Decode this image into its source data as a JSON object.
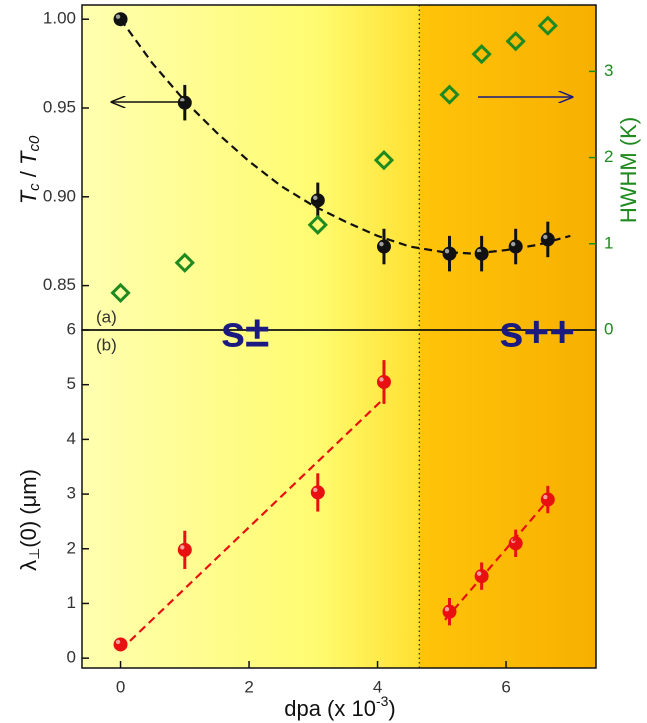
{
  "chart_data": [
    {
      "type": "scatter",
      "panel_label": "(a)",
      "annotations": [
        "s±",
        "s++"
      ],
      "ylabel_parts": [
        "T",
        "c",
        " / ",
        "T",
        "c0"
      ],
      "y2label": "HWHM  (K)",
      "xlim": [
        -0.6,
        7.4
      ],
      "ylim": [
        0.825,
        1.008
      ],
      "y2lim": [
        0,
        3.77
      ],
      "yticks": [
        {
          "value": 0.85,
          "label": "0.85"
        },
        {
          "value": 0.9,
          "label": "0.90"
        },
        {
          "value": 0.95,
          "label": "0.95"
        },
        {
          "value": 1.0,
          "label": "1.00"
        }
      ],
      "y2ticks": [
        0,
        1,
        2,
        3
      ],
      "y2color": "#1f8a1f",
      "transition_dpa": 4.65,
      "series": [
        {
          "color": "#111111",
          "marker": "circle",
          "x": [
            0,
            1,
            3.07,
            4.1,
            5.12,
            5.62,
            6.15,
            6.65
          ],
          "values": [
            1.0,
            0.953,
            0.898,
            0.872,
            0.868,
            0.868,
            0.872,
            0.876
          ],
          "errors": [
            0.003,
            0.01,
            0.01,
            0.01,
            0.01,
            0.01,
            0.01,
            0.01
          ]
        },
        {
          "color": "#1f8a1f",
          "marker": "diamond",
          "axis": "y2",
          "x": [
            0,
            1,
            3.07,
            4.1,
            5.12,
            5.62,
            6.15,
            6.65
          ],
          "values": [
            0.43,
            0.78,
            1.22,
            1.97,
            2.73,
            3.2,
            3.35,
            3.53
          ]
        },
        {
          "color": "#111111",
          "style": "dashed",
          "x": [
            0,
            0.5,
            1,
            1.5,
            2,
            2.5,
            3,
            3.5,
            4,
            4.5,
            5,
            5.5,
            6,
            6.5,
            7
          ],
          "values": [
            1.0,
            0.975,
            0.954,
            0.936,
            0.92,
            0.906,
            0.895,
            0.886,
            0.878,
            0.872,
            0.869,
            0.868,
            0.87,
            0.873,
            0.878
          ]
        }
      ]
    },
    {
      "type": "scatter",
      "panel_label": "(b)",
      "ylabel_parts": [
        "λ",
        "⊥",
        "(0)  (μm)"
      ],
      "xlabel_parts": [
        "dpa (x 10",
        "-3",
        ")"
      ],
      "xlim": [
        -0.6,
        7.4
      ],
      "xticks": [
        0,
        2,
        4,
        6
      ],
      "ylim": [
        -0.18,
        6
      ],
      "yticks": [
        0,
        1,
        2,
        3,
        4,
        5,
        6
      ],
      "series": [
        {
          "color": "#e81010",
          "marker": "circle",
          "x": [
            0,
            1,
            3.07,
            4.1,
            5.12,
            5.62,
            6.15,
            6.65
          ],
          "values": [
            0.25,
            1.98,
            3.03,
            5.05,
            0.85,
            1.5,
            2.1,
            2.9
          ],
          "errors": [
            0.1,
            0.35,
            0.35,
            0.4,
            0.25,
            0.25,
            0.25,
            0.25
          ]
        },
        {
          "color": "#e81010",
          "style": "dashed",
          "x": [
            0,
            4.1
          ],
          "values": [
            0.15,
            4.75
          ]
        },
        {
          "color": "#e81010",
          "style": "dashed",
          "x": [
            5.05,
            6.7
          ],
          "values": [
            0.7,
            2.95
          ]
        }
      ]
    }
  ]
}
